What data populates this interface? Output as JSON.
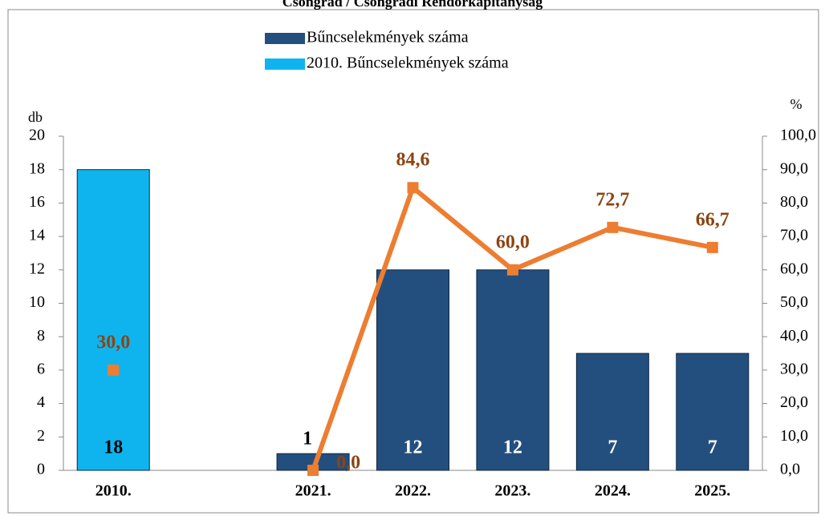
{
  "chart_data": {
    "type": "bar",
    "title": "Csongrád / Csongrádi Rendőrkapitányság",
    "categories": [
      "2010.",
      null,
      "2021.",
      "2022.",
      "2023.",
      "2024.",
      "2025."
    ],
    "series": [
      {
        "name": "Bűncselekmények száma",
        "color": "#234f7e",
        "values": [
          null,
          null,
          1,
          12,
          12,
          7,
          7
        ]
      },
      {
        "name": "2010. Bűncselekmények száma",
        "color": "#0fb4ee",
        "values": [
          18,
          null,
          null,
          null,
          null,
          null,
          null
        ]
      },
      {
        "type": "line",
        "axis": "y2",
        "color": "#ed7d31",
        "label_color": "#8b4513",
        "values": [
          30.0,
          null,
          0.0,
          84.6,
          60.0,
          72.7,
          66.7
        ],
        "value_labels": [
          "30,0",
          null,
          "0,0",
          "84,6",
          "60,0",
          "72,7",
          "66,7"
        ]
      }
    ],
    "ylabel": "db",
    "y2label": "%",
    "ylim": [
      0,
      20
    ],
    "yticks": [
      0,
      2,
      4,
      6,
      8,
      10,
      12,
      14,
      16,
      18,
      20
    ],
    "y2lim": [
      0,
      100
    ],
    "y2ticks": [
      {
        "value": 0,
        "label": "0,0"
      },
      {
        "value": 10,
        "label": "10,0"
      },
      {
        "value": 20,
        "label": "20,0"
      },
      {
        "value": 30,
        "label": "30,0"
      },
      {
        "value": 40,
        "label": "40,0"
      },
      {
        "value": 50,
        "label": "50,0"
      },
      {
        "value": 60,
        "label": "60,0"
      },
      {
        "value": 70,
        "label": "70,0"
      },
      {
        "value": 80,
        "label": "80,0"
      },
      {
        "value": 90,
        "label": "90,0"
      },
      {
        "value": 100,
        "label": "100,0"
      }
    ],
    "legend": "top",
    "grid": false
  }
}
